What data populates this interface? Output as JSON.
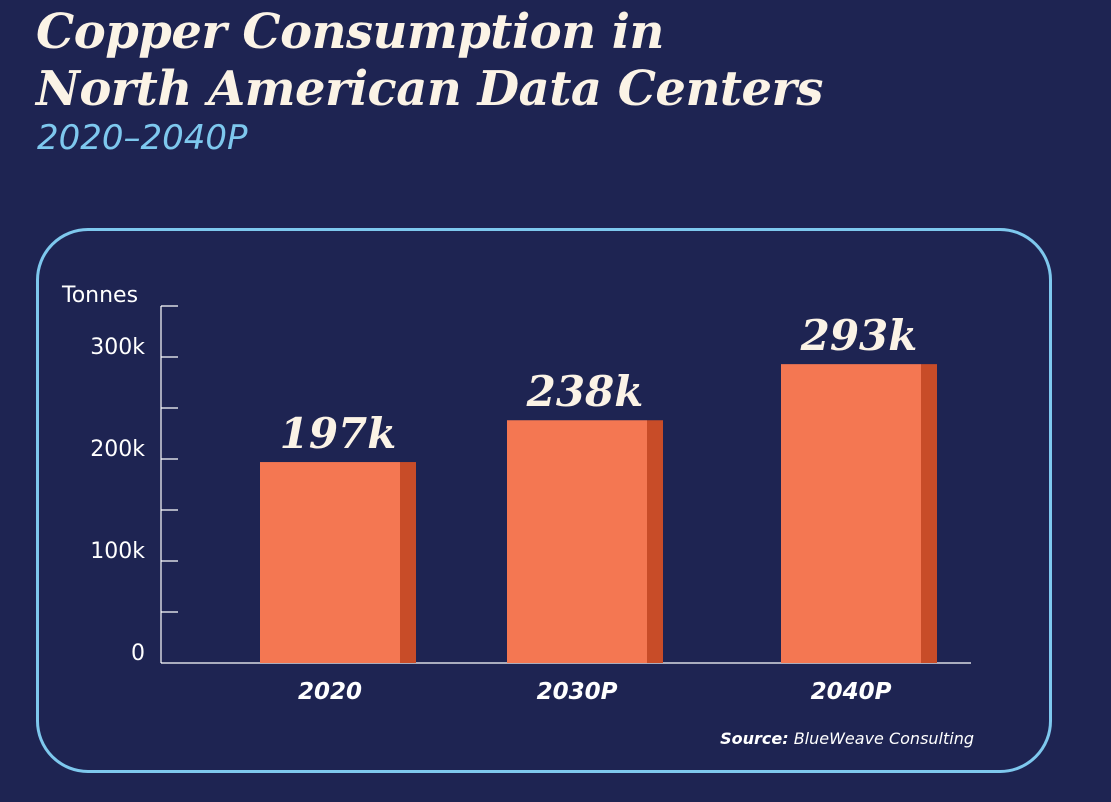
{
  "title_line1": "Copper Consumption in",
  "title_line2": "North American Data Centers",
  "subtitle": "2020–2040P",
  "source_label": "Source:",
  "source_text": "BlueWeave Consulting",
  "colors": {
    "background": "#1e2452",
    "panel_border": "#7ec8ee",
    "bar_front": "#f47752",
    "bar_side": "#c84c28",
    "title": "#fbf3e6",
    "subtitle": "#7ec8ee"
  },
  "chart_data": {
    "type": "bar",
    "title": "Copper Consumption in North American Data Centers",
    "subtitle": "2020–2040P",
    "ylabel": "Tonnes",
    "xlabel": "",
    "categories": [
      "2020",
      "2030P",
      "2040P"
    ],
    "values": [
      197000,
      238000,
      293000
    ],
    "value_labels": [
      "197k",
      "238k",
      "293k"
    ],
    "ylim": [
      0,
      350000
    ],
    "yticks": [
      0,
      100000,
      200000,
      300000
    ],
    "ytick_labels": [
      "0",
      "100k",
      "200k",
      "300k"
    ],
    "minor_tick_step": 50000,
    "grid": false
  }
}
